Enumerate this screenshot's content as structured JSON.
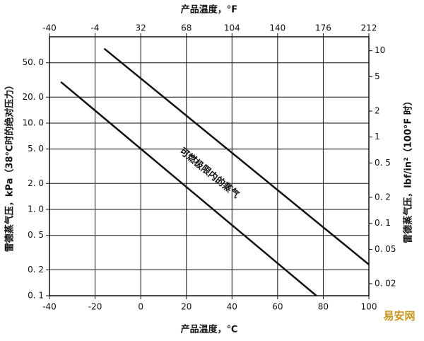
{
  "chart_data": {
    "type": "line",
    "title_top": "产品温度，°F",
    "x_label": "产品温度，℃",
    "y_label": "雷德蒸气压，kPa（38℃时的绝对压力）",
    "y2_label": "雷德蒸气压，lbf/in²（100°F 时）",
    "annotation": "可燃极限内的蒸气",
    "watermark": "易安网",
    "log_y": true,
    "grid": true,
    "color": "#111111",
    "xlim": [
      -40,
      100
    ],
    "xticks": [
      -40,
      -20,
      0,
      20,
      40,
      60,
      80,
      100
    ],
    "x2lim": [
      -40,
      212
    ],
    "x2ticks": [
      -40,
      -4,
      32,
      68,
      104,
      140,
      176,
      212
    ],
    "ylim": [
      0.1,
      100
    ],
    "yticks": [
      {
        "value": 50,
        "label": "50. 0"
      },
      {
        "value": 20,
        "label": "20. 0"
      },
      {
        "value": 10,
        "label": "10. 0"
      },
      {
        "value": 5,
        "label": "5. 0"
      },
      {
        "value": 2,
        "label": "2. 0"
      },
      {
        "value": 1,
        "label": "1. 0"
      },
      {
        "value": 0.5,
        "label": "0. 5"
      },
      {
        "value": 0.2,
        "label": "0. 2"
      },
      {
        "value": 0.1,
        "label": "0. 1"
      }
    ],
    "y2lim": [
      0.0145,
      14.5
    ],
    "y2ticks": [
      10,
      5,
      2,
      1,
      {
        "value": 0.5,
        "label": "0. 5"
      },
      {
        "value": 0.2,
        "label": "0. 2"
      },
      {
        "value": 0.1,
        "label": "0. 1"
      },
      {
        "value": 0.05,
        "label": "0. 05"
      },
      {
        "value": 0.02,
        "label": "0. 02"
      }
    ],
    "series": [
      {
        "x": [
          -16,
          100
        ],
        "values": [
          73,
          0.23
        ]
      },
      {
        "x": [
          -35,
          77
        ],
        "values": [
          30,
          0.1
        ]
      }
    ]
  }
}
